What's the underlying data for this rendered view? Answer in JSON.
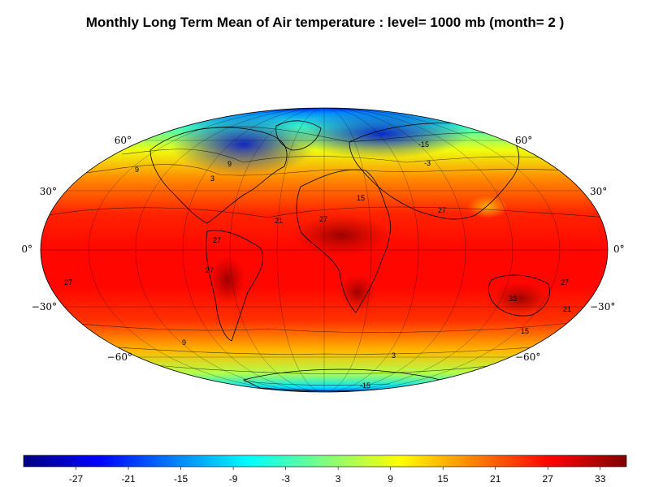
{
  "title": "Monthly Long Term Mean of Air temperature : level= 1000 mb (month= 2 )",
  "latitude_labels": {
    "left": [
      "60°",
      "30°",
      "0°",
      "−30°",
      "−60°"
    ],
    "right": [
      "60°",
      "30°",
      "0°",
      "−30°",
      "−60°"
    ]
  },
  "contour_labels": [
    "-15",
    "9",
    "9",
    "-3",
    "3",
    "15",
    "21",
    "27",
    "27",
    "27",
    "27",
    "27",
    "27",
    "21",
    "33",
    "15",
    "9",
    "3",
    "-15"
  ],
  "colorbar": {
    "ticks": [
      "-27",
      "-21",
      "-15",
      "-9",
      "-3",
      "3",
      "9",
      "15",
      "21",
      "27",
      "33"
    ],
    "colors": [
      "#00007f",
      "#0000ff",
      "#007fff",
      "#00ffff",
      "#7fff7f",
      "#ffff00",
      "#ff7f00",
      "#ff0000",
      "#7f0000"
    ]
  },
  "chart_data": {
    "type": "heatmap",
    "projection": "Mollweide",
    "variable": "Air temperature",
    "level": "1000 mb",
    "month": 2,
    "scale": {
      "min": -33,
      "max": 36,
      "tick_values": [
        -27,
        -21,
        -15,
        -9,
        -3,
        3,
        9,
        15,
        21,
        27,
        33
      ]
    },
    "latitude_bands": [
      {
        "lat": 90,
        "value": -21
      },
      {
        "lat": 75,
        "value": -15
      },
      {
        "lat": 60,
        "value": -3
      },
      {
        "lat": 45,
        "value": 9
      },
      {
        "lat": 30,
        "value": 18
      },
      {
        "lat": 15,
        "value": 25
      },
      {
        "lat": 0,
        "value": 27
      },
      {
        "lat": -15,
        "value": 27
      },
      {
        "lat": -30,
        "value": 24
      },
      {
        "lat": -45,
        "value": 15
      },
      {
        "lat": -60,
        "value": 5
      },
      {
        "lat": -75,
        "value": -9
      },
      {
        "lat": -90,
        "value": -18
      }
    ]
  }
}
